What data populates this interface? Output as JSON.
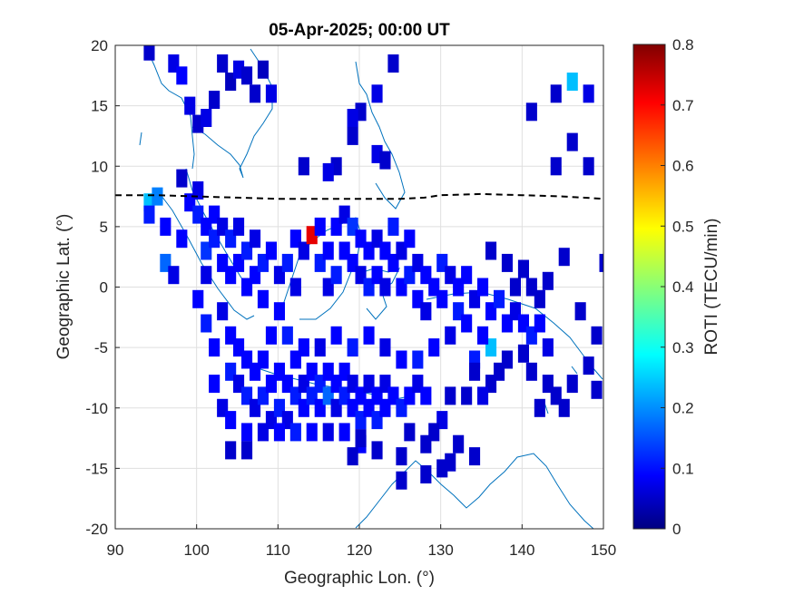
{
  "chart_data": {
    "type": "heatmap",
    "title": "05-Apr-2025; 00:00 UT",
    "xlabel": "Geographic Lon. (°)",
    "ylabel": "Geographic Lat. (°)",
    "xlim": [
      90,
      150
    ],
    "ylim": [
      -20,
      20
    ],
    "xticks": [
      90,
      100,
      110,
      120,
      130,
      140,
      150
    ],
    "yticks": [
      -20,
      -15,
      -10,
      -5,
      0,
      5,
      10,
      15,
      20
    ],
    "grid": true,
    "colorbar": {
      "label": "ROTI (TECU/min)",
      "clim": [
        0,
        0.8
      ],
      "ticks": [
        0,
        0.1,
        0.2,
        0.3,
        0.4,
        0.5,
        0.6,
        0.7,
        0.8
      ],
      "colormap": "jet"
    },
    "equator_line": {
      "style": "dashed",
      "color": "#000000",
      "points": [
        [
          90,
          7.6
        ],
        [
          95,
          7.6
        ],
        [
          100,
          7.5
        ],
        [
          105,
          7.4
        ],
        [
          110,
          7.3
        ],
        [
          115,
          7.3
        ],
        [
          120,
          7.3
        ],
        [
          125,
          7.3
        ],
        [
          128,
          7.4
        ],
        [
          130,
          7.6
        ],
        [
          135,
          7.7
        ],
        [
          140,
          7.6
        ],
        [
          145,
          7.5
        ],
        [
          150,
          7.3
        ]
      ]
    },
    "coast_color": "#0072BD",
    "cells": [
      [
        94,
        7,
        0.25
      ],
      [
        95,
        7.5,
        0.2
      ],
      [
        94,
        6,
        0.12
      ],
      [
        96,
        5,
        0.1
      ],
      [
        96,
        2,
        0.18
      ],
      [
        97,
        1,
        0.08
      ],
      [
        98,
        4,
        0.1
      ],
      [
        98,
        9,
        0.06
      ],
      [
        99,
        7,
        0.1
      ],
      [
        100,
        8,
        0.08
      ],
      [
        100,
        6,
        0.12
      ],
      [
        101,
        5,
        0.1
      ],
      [
        101,
        3,
        0.14
      ],
      [
        101,
        1,
        0.08
      ],
      [
        102,
        6,
        0.1
      ],
      [
        102,
        4,
        0.12
      ],
      [
        103,
        5,
        0.08
      ],
      [
        103,
        2,
        0.1
      ],
      [
        104,
        4,
        0.12
      ],
      [
        104,
        1,
        0.1
      ],
      [
        105,
        5,
        0.08
      ],
      [
        105,
        2,
        0.1
      ],
      [
        106,
        3,
        0.12
      ],
      [
        106,
        0,
        0.1
      ],
      [
        107,
        4,
        0.08
      ],
      [
        107,
        1,
        0.1
      ],
      [
        108,
        2,
        0.12
      ],
      [
        108,
        -1,
        0.1
      ],
      [
        109,
        3,
        0.1
      ],
      [
        110,
        1,
        0.08
      ],
      [
        110,
        -2,
        0.1
      ],
      [
        111,
        2,
        0.12
      ],
      [
        112,
        0,
        0.08
      ],
      [
        112,
        4,
        0.1
      ],
      [
        113,
        3,
        0.08
      ],
      [
        114,
        4.3,
        0.72
      ],
      [
        115,
        5,
        0.1
      ],
      [
        115,
        2,
        0.12
      ],
      [
        116,
        3,
        0.1
      ],
      [
        116,
        0,
        0.08
      ],
      [
        117,
        5,
        0.1
      ],
      [
        117,
        1,
        0.12
      ],
      [
        118,
        6,
        0.08
      ],
      [
        118,
        3,
        0.1
      ],
      [
        119,
        5,
        0.14
      ],
      [
        119,
        2,
        0.1
      ],
      [
        120,
        4,
        0.1
      ],
      [
        120,
        1,
        0.08
      ],
      [
        121,
        3,
        0.1
      ],
      [
        121,
        0,
        0.12
      ],
      [
        122,
        4,
        0.08
      ],
      [
        122,
        1,
        0.1
      ],
      [
        123,
        3,
        0.1
      ],
      [
        123,
        0,
        0.08
      ],
      [
        124,
        2,
        0.1
      ],
      [
        124,
        5,
        0.12
      ],
      [
        125,
        3,
        0.08
      ],
      [
        125,
        0,
        0.1
      ],
      [
        126,
        4,
        0.1
      ],
      [
        126,
        1,
        0.12
      ],
      [
        127,
        2,
        0.08
      ],
      [
        127,
        -1,
        0.1
      ],
      [
        128,
        1,
        0.1
      ],
      [
        128,
        -2,
        0.08
      ],
      [
        129,
        0,
        0.1
      ],
      [
        130,
        2,
        0.12
      ],
      [
        130,
        -1,
        0.1
      ],
      [
        131,
        1,
        0.08
      ],
      [
        132,
        0,
        0.1
      ],
      [
        132,
        -2,
        0.12
      ],
      [
        133,
        1,
        0.1
      ],
      [
        134,
        -1,
        0.08
      ],
      [
        135,
        0,
        0.1
      ],
      [
        136,
        -2,
        0.1
      ],
      [
        137,
        -1,
        0.12
      ],
      [
        138,
        -3,
        0.1
      ],
      [
        139,
        -2,
        0.08
      ],
      [
        140,
        -3,
        0.1
      ],
      [
        141,
        -4,
        0.12
      ],
      [
        142,
        -3,
        0.1
      ],
      [
        143,
        -5,
        0.08
      ],
      [
        136,
        -5,
        0.25
      ],
      [
        135,
        -4,
        0.1
      ],
      [
        134,
        -6,
        0.12
      ],
      [
        100,
        -1,
        0.1
      ],
      [
        101,
        -3,
        0.12
      ],
      [
        102,
        -5,
        0.1
      ],
      [
        103,
        -2,
        0.08
      ],
      [
        104,
        -4,
        0.1
      ],
      [
        104,
        -7,
        0.12
      ],
      [
        105,
        -5,
        0.1
      ],
      [
        105,
        -8,
        0.08
      ],
      [
        106,
        -6,
        0.1
      ],
      [
        106,
        -9,
        0.12
      ],
      [
        107,
        -7,
        0.1
      ],
      [
        107,
        -10,
        0.08
      ],
      [
        108,
        -6,
        0.1
      ],
      [
        108,
        -9,
        0.12
      ],
      [
        109,
        -8,
        0.1
      ],
      [
        109,
        -11,
        0.08
      ],
      [
        110,
        -7,
        0.1
      ],
      [
        110,
        -10,
        0.12
      ],
      [
        111,
        -8,
        0.1
      ],
      [
        111,
        -11,
        0.08
      ],
      [
        112,
        -9,
        0.12
      ],
      [
        112,
        -6,
        0.1
      ],
      [
        113,
        -10,
        0.1
      ],
      [
        113,
        -8,
        0.08
      ],
      [
        114,
        -9,
        0.12
      ],
      [
        114,
        -7,
        0.1
      ],
      [
        115,
        -10,
        0.1
      ],
      [
        115,
        -8,
        0.12
      ],
      [
        116,
        -9,
        0.18
      ],
      [
        116,
        -7,
        0.1
      ],
      [
        117,
        -10,
        0.08
      ],
      [
        117,
        -8,
        0.1
      ],
      [
        118,
        -9,
        0.12
      ],
      [
        118,
        -7,
        0.1
      ],
      [
        119,
        -10,
        0.1
      ],
      [
        119,
        -8,
        0.08
      ],
      [
        120,
        -9,
        0.1
      ],
      [
        120,
        -11,
        0.12
      ],
      [
        121,
        -10,
        0.1
      ],
      [
        121,
        -8,
        0.08
      ],
      [
        122,
        -9,
        0.1
      ],
      [
        122,
        -11,
        0.12
      ],
      [
        123,
        -10,
        0.1
      ],
      [
        123,
        -8,
        0.08
      ],
      [
        124,
        -9,
        0.1
      ],
      [
        125,
        -10,
        0.12
      ],
      [
        126,
        -9,
        0.1
      ],
      [
        127,
        -8,
        0.08
      ],
      [
        128,
        -9,
        0.1
      ],
      [
        102,
        -8,
        0.1
      ],
      [
        103,
        -10,
        0.08
      ],
      [
        104,
        -11,
        0.1
      ],
      [
        106,
        -12,
        0.1
      ],
      [
        108,
        -12,
        0.08
      ],
      [
        110,
        -12,
        0.1
      ],
      [
        112,
        -12,
        0.12
      ],
      [
        114,
        -12,
        0.1
      ],
      [
        116,
        -12,
        0.08
      ],
      [
        118,
        -12,
        0.1
      ],
      [
        120,
        -13,
        0.1
      ],
      [
        109,
        -4,
        0.1
      ],
      [
        111,
        -4,
        0.12
      ],
      [
        113,
        -5,
        0.1
      ],
      [
        115,
        -5,
        0.08
      ],
      [
        117,
        -4,
        0.1
      ],
      [
        119,
        -5,
        0.12
      ],
      [
        121,
        -4,
        0.1
      ],
      [
        123,
        -5,
        0.08
      ],
      [
        125,
        -6,
        0.1
      ],
      [
        127,
        -6,
        0.12
      ],
      [
        129,
        -5,
        0.1
      ],
      [
        131,
        -4,
        0.08
      ],
      [
        133,
        -3,
        0.1
      ]
    ],
    "sparse_cells": [
      [
        94,
        19.5,
        0.06
      ],
      [
        97,
        18.5,
        0.08
      ],
      [
        98,
        17.5,
        0.1
      ],
      [
        103,
        18.5,
        0.06
      ],
      [
        104,
        17,
        0.05
      ],
      [
        105,
        18,
        0.08
      ],
      [
        106,
        17.5,
        0.06
      ],
      [
        107,
        16,
        0.06
      ],
      [
        108,
        18,
        0.05
      ],
      [
        109,
        16,
        0.08
      ],
      [
        102,
        15.5,
        0.06
      ],
      [
        99,
        15,
        0.08
      ],
      [
        100,
        13.5,
        0.06
      ],
      [
        101,
        14,
        0.08
      ],
      [
        124,
        18.5,
        0.06
      ],
      [
        122,
        16,
        0.08
      ],
      [
        120,
        14.5,
        0.06
      ],
      [
        119,
        14,
        0.08
      ],
      [
        117,
        10,
        0.06
      ],
      [
        116,
        9.5,
        0.08
      ],
      [
        113,
        10,
        0.06
      ],
      [
        119,
        12.5,
        0.06
      ],
      [
        122,
        11,
        0.08
      ],
      [
        123,
        10.5,
        0.06
      ],
      [
        146,
        17,
        0.25
      ],
      [
        148,
        16,
        0.08
      ],
      [
        144,
        16,
        0.06
      ],
      [
        141,
        14.5,
        0.06
      ],
      [
        146,
        12,
        0.06
      ],
      [
        144,
        10,
        0.06
      ],
      [
        148,
        10,
        0.06
      ],
      [
        145,
        2.5,
        0.06
      ],
      [
        143,
        0.5,
        0.06
      ],
      [
        147,
        -2,
        0.06
      ],
      [
        149,
        -4,
        0.06
      ],
      [
        148,
        -6.5,
        0.06
      ],
      [
        149,
        -8.5,
        0.06
      ],
      [
        146,
        -8,
        0.06
      ],
      [
        143,
        -8,
        0.06
      ],
      [
        144,
        -9,
        0.06
      ],
      [
        142,
        -10,
        0.06
      ],
      [
        145,
        -10,
        0.06
      ],
      [
        141,
        -7,
        0.06
      ],
      [
        140,
        -5.5,
        0.06
      ],
      [
        138,
        -6,
        0.06
      ],
      [
        137,
        -7,
        0.06
      ],
      [
        136,
        -8,
        0.06
      ],
      [
        135,
        -9,
        0.08
      ],
      [
        134,
        -7,
        0.06
      ],
      [
        133,
        -9,
        0.06
      ],
      [
        131,
        -9,
        0.06
      ],
      [
        130,
        -11,
        0.08
      ],
      [
        129,
        -12,
        0.06
      ],
      [
        126,
        -12,
        0.06
      ],
      [
        128,
        -13,
        0.06
      ],
      [
        125,
        -14,
        0.06
      ],
      [
        122,
        -13.5,
        0.06
      ],
      [
        120,
        -12.5,
        0.06
      ],
      [
        119,
        -14,
        0.06
      ],
      [
        104,
        -13.5,
        0.06
      ],
      [
        106,
        -13.5,
        0.06
      ],
      [
        132,
        -13,
        0.06
      ],
      [
        134,
        -14,
        0.06
      ],
      [
        131,
        -14.5,
        0.06
      ],
      [
        130,
        -15,
        0.06
      ],
      [
        125,
        -16,
        0.06
      ],
      [
        128,
        -15.5,
        0.06
      ],
      [
        136,
        3,
        0.06
      ],
      [
        138,
        2,
        0.06
      ],
      [
        140,
        1.5,
        0.06
      ],
      [
        141,
        0,
        0.06
      ],
      [
        142,
        -1,
        0.06
      ],
      [
        139,
        0,
        0.06
      ],
      [
        150,
        2,
        0.06
      ]
    ]
  }
}
